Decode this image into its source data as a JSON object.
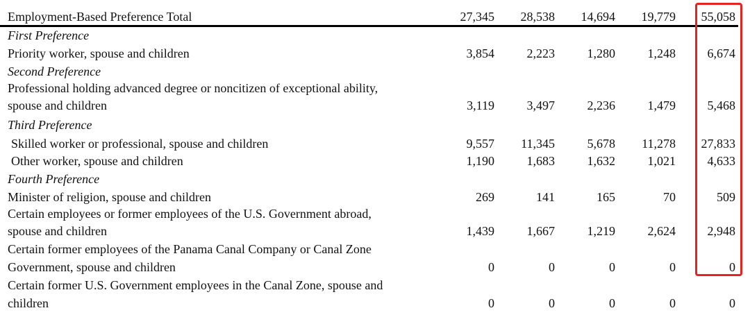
{
  "highlight_color": "#e8231f",
  "rows": [
    {
      "label": "Employment-Based Preference Total",
      "style": "total",
      "values": [
        "27,345",
        "28,538",
        "14,694",
        "19,779",
        "55,058"
      ]
    },
    {
      "label": "First Preference",
      "style": "heading",
      "values": []
    },
    {
      "label": "Priority worker, spouse and children",
      "style": "row",
      "values": [
        "3,854",
        "2,223",
        "1,280",
        "1,248",
        "6,674"
      ]
    },
    {
      "label": "Second Preference",
      "style": "heading",
      "values": []
    },
    {
      "label": "Professional holding advanced degree or noncitizen of exceptional ability,",
      "style": "row",
      "values": []
    },
    {
      "label": "spouse and children",
      "style": "row",
      "values": [
        "3,119",
        "3,497",
        "2,236",
        "1,479",
        "5,468"
      ]
    },
    {
      "label": "Third Preference",
      "style": "heading",
      "values": []
    },
    {
      "label": "Skilled worker or professional, spouse and children",
      "style": "indent",
      "values": [
        "9,557",
        "11,345",
        "5,678",
        "11,278",
        "27,833"
      ]
    },
    {
      "label": "Other worker, spouse and children",
      "style": "indent",
      "values": [
        "1,190",
        "1,683",
        "1,632",
        "1,021",
        "4,633"
      ]
    },
    {
      "label": "Fourth Preference",
      "style": "heading",
      "values": []
    },
    {
      "label": "Minister of religion, spouse and children",
      "style": "row",
      "values": [
        "269",
        "141",
        "165",
        "70",
        "509"
      ]
    },
    {
      "label": "Certain employees or former employees of the U.S. Government abroad,",
      "style": "row",
      "values": []
    },
    {
      "label": "spouse and children",
      "style": "row",
      "values": [
        "1,439",
        "1,667",
        "1,219",
        "2,624",
        "2,948"
      ]
    },
    {
      "label": "Certain former employees of the Panama Canal Company or Canal Zone",
      "style": "row",
      "values": []
    },
    {
      "label": "Government, spouse and children",
      "style": "row",
      "values": [
        "0",
        "0",
        "0",
        "0",
        "0"
      ]
    },
    {
      "label": "Certain former U.S. Government employees in the Canal Zone, spouse and",
      "style": "row",
      "values": []
    },
    {
      "label": "children",
      "style": "row",
      "values": [
        "0",
        "0",
        "0",
        "0",
        "0"
      ]
    }
  ]
}
